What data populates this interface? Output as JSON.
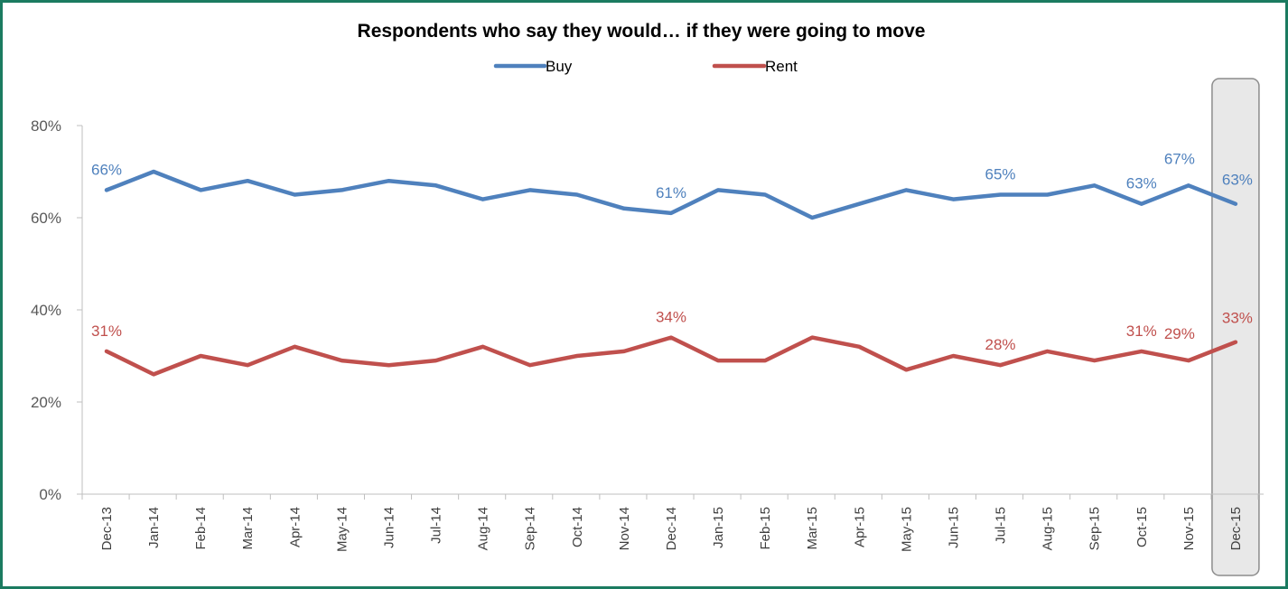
{
  "chart_data": {
    "type": "line",
    "title": "Respondents who say they would… if they were going to move",
    "xlabel": "",
    "ylabel": "",
    "ylim": [
      0,
      80
    ],
    "y_ticks": [
      "0%",
      "20%",
      "40%",
      "60%",
      "80%"
    ],
    "y_tick_values": [
      0,
      20,
      40,
      60,
      80
    ],
    "grid": false,
    "legend": "top-center",
    "highlight_category": "Dec-15",
    "highlight_color": "#e8e8e8",
    "categories": [
      "Dec-13",
      "Jan-14",
      "Feb-14",
      "Mar-14",
      "Apr-14",
      "May-14",
      "Jun-14",
      "Jul-14",
      "Aug-14",
      "Sep-14",
      "Oct-14",
      "Nov-14",
      "Dec-14",
      "Jan-15",
      "Feb-15",
      "Mar-15",
      "Apr-15",
      "May-15",
      "Jun-15",
      "Jul-15",
      "Aug-15",
      "Sep-15",
      "Oct-15",
      "Nov-15",
      "Dec-15"
    ],
    "series": [
      {
        "name": "Buy",
        "color": "#4f81bd",
        "values": [
          66,
          70,
          66,
          68,
          65,
          66,
          68,
          67,
          64,
          66,
          65,
          62,
          61,
          66,
          65,
          60,
          63,
          66,
          64,
          65,
          65,
          67,
          63,
          67,
          63
        ],
        "labels": [
          {
            "index": 0,
            "text": "66%"
          },
          {
            "index": 12,
            "text": "61%"
          },
          {
            "index": 19,
            "text": "65%"
          },
          {
            "index": 22,
            "text": "63%"
          },
          {
            "index": 23,
            "text": "67%"
          },
          {
            "index": 24,
            "text": "63%"
          }
        ]
      },
      {
        "name": "Rent",
        "color": "#c0504d",
        "values": [
          31,
          26,
          30,
          28,
          32,
          29,
          28,
          29,
          32,
          28,
          30,
          31,
          34,
          29,
          29,
          34,
          32,
          27,
          30,
          28,
          31,
          29,
          31,
          29,
          33
        ],
        "labels": [
          {
            "index": 0,
            "text": "31%"
          },
          {
            "index": 12,
            "text": "34%"
          },
          {
            "index": 19,
            "text": "28%"
          },
          {
            "index": 22,
            "text": "31%"
          },
          {
            "index": 23,
            "text": "29%"
          },
          {
            "index": 24,
            "text": "33%"
          }
        ]
      }
    ]
  }
}
